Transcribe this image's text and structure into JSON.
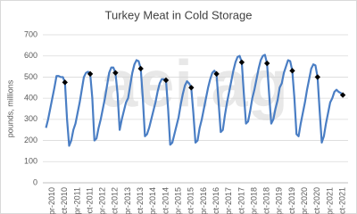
{
  "chart_data": {
    "type": "line",
    "title": "Turkey Meat in Cold Storage",
    "y_label": "pounds, millions",
    "watermark": "aei.ag",
    "categories": [
      null,
      null,
      null,
      "Apr-2010",
      null,
      null,
      null,
      null,
      null,
      "Oct-2010",
      null,
      null,
      null,
      null,
      null,
      "Apr-2011",
      null,
      null,
      null,
      null,
      null,
      "Oct-2011",
      null,
      null,
      null,
      null,
      null,
      "Apr-2012",
      null,
      null,
      null,
      null,
      null,
      "Oct-2012",
      null,
      null,
      null,
      null,
      null,
      "Apr-2013",
      null,
      null,
      null,
      null,
      null,
      "Oct-2013",
      null,
      null,
      null,
      null,
      null,
      "Apr-2014",
      null,
      null,
      null,
      null,
      null,
      "Oct-2014",
      null,
      null,
      null,
      null,
      null,
      "Apr-2015",
      null,
      null,
      null,
      null,
      null,
      "Oct-2015",
      null,
      null,
      null,
      null,
      null,
      "Apr-2016",
      null,
      null,
      null,
      null,
      null,
      "Oct-2016",
      null,
      null,
      null,
      null,
      null,
      "Apr-2017",
      null,
      null,
      null,
      null,
      null,
      "Oct-2017",
      null,
      null,
      null,
      null,
      null,
      "Apr-2018",
      null,
      null,
      null,
      null,
      null,
      "Oct-2018",
      null,
      null,
      null,
      null,
      null,
      "Apr-2019",
      null,
      null,
      null,
      null,
      null,
      "Oct-2019",
      null,
      null,
      null,
      null,
      null,
      "Apr-2020",
      null,
      null,
      null,
      null,
      null,
      "Oct-2020",
      null,
      null,
      null,
      null,
      null,
      "Apr-2021",
      null,
      null,
      null,
      null,
      null,
      "Oct-2021"
    ],
    "series": [
      {
        "color": "#4a7ec4",
        "values": [
          260,
          300,
          350,
          400,
          450,
          505,
          505,
          500,
          500,
          475,
          300,
          175,
          200,
          250,
          280,
          330,
          380,
          440,
          500,
          520,
          525,
          515,
          400,
          200,
          210,
          260,
          300,
          350,
          400,
          460,
          520,
          545,
          545,
          520,
          420,
          250,
          300,
          340,
          380,
          400,
          460,
          520,
          560,
          580,
          575,
          540,
          400,
          220,
          230,
          260,
          300,
          340,
          380,
          430,
          470,
          490,
          490,
          485,
          350,
          180,
          190,
          230,
          270,
          310,
          370,
          420,
          460,
          480,
          470,
          450,
          330,
          190,
          200,
          260,
          300,
          350,
          400,
          450,
          490,
          520,
          530,
          515,
          380,
          240,
          250,
          320,
          380,
          430,
          480,
          530,
          570,
          595,
          600,
          570,
          420,
          280,
          290,
          340,
          400,
          440,
          490,
          540,
          580,
          600,
          605,
          565,
          420,
          280,
          300,
          350,
          390,
          450,
          470,
          520,
          550,
          580,
          575,
          530,
          400,
          230,
          220,
          280,
          330,
          380,
          440,
          490,
          540,
          560,
          555,
          500,
          340,
          190,
          220,
          280,
          330,
          380,
          400,
          430,
          440,
          430,
          425,
          415
        ]
      },
      {
        "color": "#000000",
        "marker": "diamond",
        "values": [
          null,
          null,
          null,
          null,
          null,
          null,
          null,
          null,
          null,
          475,
          null,
          null,
          null,
          null,
          null,
          null,
          null,
          null,
          null,
          null,
          null,
          515,
          null,
          null,
          null,
          null,
          null,
          null,
          null,
          null,
          null,
          null,
          null,
          520,
          null,
          null,
          null,
          null,
          null,
          null,
          null,
          null,
          null,
          null,
          null,
          540,
          null,
          null,
          null,
          null,
          null,
          null,
          null,
          null,
          null,
          null,
          null,
          485,
          null,
          null,
          null,
          null,
          null,
          null,
          null,
          null,
          null,
          null,
          null,
          450,
          null,
          null,
          null,
          null,
          null,
          null,
          null,
          null,
          null,
          null,
          null,
          515,
          null,
          null,
          null,
          null,
          null,
          null,
          null,
          null,
          null,
          null,
          null,
          570,
          null,
          null,
          null,
          null,
          null,
          null,
          null,
          null,
          null,
          null,
          null,
          565,
          null,
          null,
          null,
          null,
          null,
          null,
          null,
          null,
          null,
          null,
          null,
          530,
          null,
          null,
          null,
          null,
          null,
          null,
          null,
          null,
          null,
          null,
          null,
          500,
          null,
          null,
          null,
          null,
          null,
          null,
          null,
          null,
          null,
          null,
          null,
          415
        ]
      }
    ],
    "ylim": [
      0,
      700
    ],
    "yticks": [
      0,
      100,
      200,
      300,
      400,
      500,
      600,
      700
    ],
    "grid": true
  }
}
